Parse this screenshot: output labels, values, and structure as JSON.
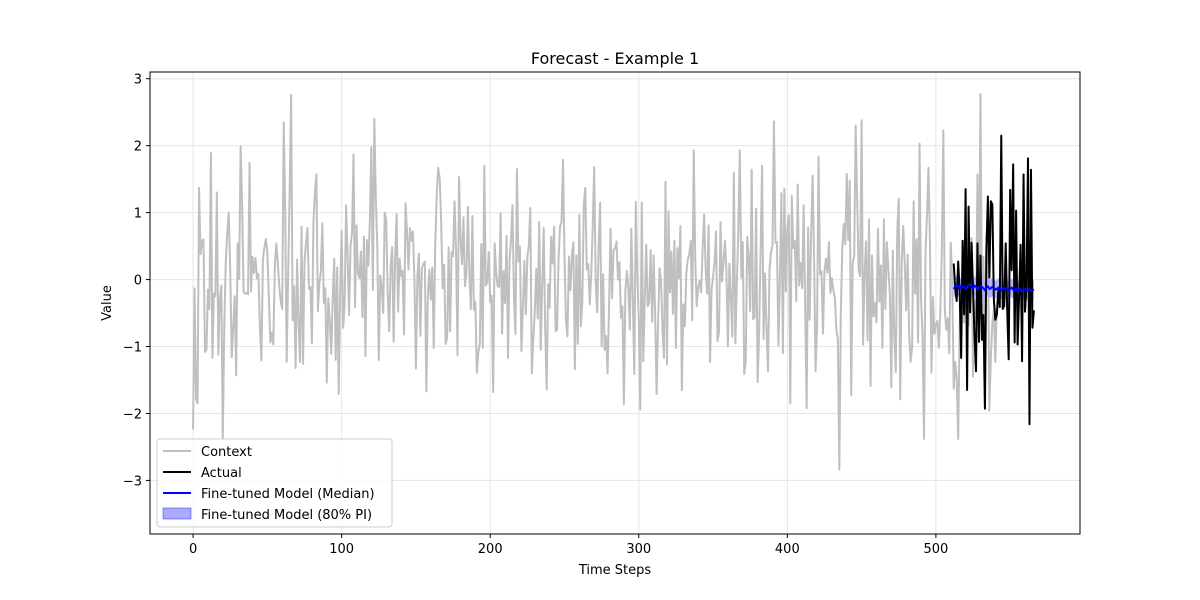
{
  "chart_data": {
    "type": "line",
    "title": "Forecast - Example 1",
    "xlabel": "Time Steps",
    "ylabel": "Value",
    "xlim": [
      -29,
      597
    ],
    "ylim": [
      -3.8,
      3.1
    ],
    "xticks": [
      0,
      100,
      200,
      300,
      400,
      500
    ],
    "yticks": [
      -3,
      -2,
      -1,
      0,
      1,
      2,
      3
    ],
    "grid": true,
    "legend_position": "lower-left",
    "colors": {
      "context": "#bfbfbf",
      "actual": "#000000",
      "median": "#0000ff",
      "interval": "#aaaaff"
    },
    "series": [
      {
        "name": "Context",
        "x_start": 0,
        "values": [
          -2.24,
          -0.13,
          -1.78,
          -1.85,
          1.37,
          0.38,
          0.58,
          0.6,
          -1.08,
          -1.05,
          -0.15,
          -0.44,
          1.89,
          -1.17,
          -0.21,
          -0.25,
          1.3,
          -1.12,
          -0.3,
          -0.09,
          -2.4,
          -0.68,
          0.27,
          0.69,
          1.0,
          0.15,
          -1.16,
          -0.73,
          -0.25,
          -1.43,
          0.54,
          0.01,
          1.99,
          1.13,
          -0.18,
          -0.21,
          -0.2,
          -0.22,
          1.74,
          -0.18,
          0.34,
          0.1,
          0.32,
          0.02,
          0.08,
          -0.72,
          -1.21,
          0.3,
          0.48,
          0.61,
          0.4,
          -0.28,
          -0.94,
          -0.79,
          -0.97,
          0.17,
          0.54,
          0.26,
          -0.1,
          -0.33,
          -0.44,
          2.35,
          1.02,
          -1.23,
          0.07,
          1.31,
          2.76,
          -0.61,
          -0.1,
          -1.32,
          0.3,
          -0.67,
          -1.23,
          0.79,
          -1.26,
          0.27,
          0.55,
          0.77,
          -0.14,
          -0.11,
          -0.95,
          0.83,
          1.29,
          1.57,
          -0.47,
          -0.06,
          0.12,
          0.84,
          -0.35,
          -0.13,
          -1.54,
          -0.28,
          -0.61,
          -1.11,
          -0.26,
          0.31,
          -1.2,
          0.18,
          -1.71,
          -0.21,
          0.73,
          -0.72,
          -0.37,
          1.11,
          0.34,
          -0.53,
          0.51,
          0.69,
          1.87,
          -0.41,
          0.81,
          0.09,
          0.02,
          0.42,
          -0.56,
          0.64,
          -1.14,
          0.59,
          0.21,
          0.89,
          1.98,
          -0.16,
          2.4,
          1.22,
          0.5,
          -1.2,
          0.06,
          -0.11,
          -0.5,
          1.0,
          0.89,
          -0.21,
          -0.77,
          0.21,
          0.48,
          -0.93,
          0.33,
          0.98,
          -0.48,
          0.31,
          0.05,
          0.13,
          -0.82,
          1.14,
          0.72,
          0.15,
          0.77,
          0.58,
          0.72,
          -0.02,
          -1.33,
          0.05,
          0.39,
          -0.84,
          0.17,
          0.23,
          0.27,
          -1.67,
          -0.27,
          0.15,
          -0.3,
          0.18,
          -1.02,
          0.52,
          1.26,
          1.67,
          1.51,
          0.85,
          -0.13,
          0.22,
          -0.96,
          -0.87,
          0.48,
          -0.77,
          0.41,
          0.35,
          1.17,
          0.42,
          -1.13,
          1.53,
          0.61,
          0.23,
          0.93,
          -0.1,
          0.09,
          1.09,
          0.05,
          -0.44,
          0.95,
          -0.45,
          -0.33,
          -1.39,
          -1.09,
          -0.96,
          0.53,
          -1.02,
          1.7,
          -0.09,
          -0.04,
          0.41,
          -0.34,
          -0.24,
          -1.68,
          0.54,
          0.11,
          -0.1,
          -0.11,
          0.99,
          -0.81,
          0.13,
          -0.35,
          0.65,
          -1.17,
          0.28,
          0.59,
          1.11,
          -0.29,
          -0.81,
          1.65,
          0.27,
          0.49,
          -1.07,
          -0.43,
          0.28,
          -0.52,
          0.34,
          0.5,
          1.07,
          -1.4,
          -0.9,
          -0.48,
          0.16,
          -0.58,
          0.86,
          -1.05,
          -0.08,
          0.77,
          -0.72,
          -1.64,
          -0.07,
          -0.42,
          0.64,
          0.24,
          0.79,
          -0.77,
          -0.75,
          0.31,
          0.79,
          0.86,
          1.79,
          0.36,
          -0.62,
          -0.85,
          0.34,
          -0.16,
          0.37,
          0.56,
          -1.34,
          0.36,
          -0.96,
          0.97,
          -0.7,
          -0.35,
          1.13,
          1.37,
          0.15,
          0.23,
          -0.37,
          0.08,
          0.8,
          1.68,
          -0.03,
          -0.49,
          0.51,
          1.15,
          -1.0,
          0.08,
          -1.05,
          -0.84,
          -1.4,
          -0.4,
          0.76,
          -0.28,
          0.45,
          0.46,
          0.57,
          0.0,
          0.26,
          -0.57,
          -0.4,
          -1.86,
          -0.17,
          0.13,
          -0.13,
          -0.75,
          0.76,
          -0.29,
          -1.41,
          1.16,
          0.09,
          -0.58,
          -1.94,
          1.15,
          -1.22,
          -0.34,
          0.52,
          -0.4,
          -0.33,
          0.44,
          -0.63,
          0.36,
          -0.49,
          -1.71,
          -0.63,
          0.17,
          -0.01,
          -0.75,
          -1.17,
          1.46,
          -1.27,
          1.02,
          -0.19,
          0.42,
          -0.51,
          0.58,
          -1.02,
          0.47,
          0.02,
          0.8,
          -1.65,
          -0.37,
          -0.7,
          0.09,
          0.3,
          0.38,
          0.58,
          -0.61,
          1.93,
          0.31,
          -0.4,
          -0.11,
          -0.02,
          -0.19,
          0.47,
          0.97,
          0.16,
          -0.21,
          0.81,
          -1.23,
          -0.14,
          0.04,
          0.26,
          0.72,
          -0.92,
          -0.78,
          0.86,
          -0.03,
          0.24,
          0.58,
          0.15,
          -1.0,
          0.24,
          -0.3,
          -0.85,
          1.6,
          -0.95,
          -0.08,
          0.74,
          1.93,
          0.03,
          0.56,
          -1.41,
          -1.21,
          0.64,
          0.35,
          -0.47,
          1.64,
          -0.59,
          -0.57,
          1.06,
          -1.53,
          -0.81,
          0.43,
          1.7,
          -0.89,
          0.09,
          -0.75,
          -1.37,
          0.15,
          0.41,
          0.51,
          2.36,
          0.55,
          0.56,
          -0.98,
          0.02,
          1.29,
          -1.1,
          1.36,
          -0.18,
          0.77,
          0.96,
          -1.85,
          1.25,
          0.47,
          0.58,
          -0.32,
          1.42,
          -0.09,
          0.25,
          -0.13,
          1.11,
          -0.42,
          -1.92,
          0.78,
          -0.6,
          0.65,
          1.55,
          0.34,
          -1.37,
          -0.73,
          1.84,
          0.08,
          0.12,
          -0.81,
          0.13,
          0.31,
          0.1,
          0.56,
          -0.2,
          0.02,
          -0.16,
          -0.27,
          -0.75,
          -0.89,
          -2.84,
          -0.51,
          0.47,
          0.83,
          0.53,
          1.58,
          0.59,
          1.48,
          -1.73,
          0.26,
          0.35,
          2.3,
          1.21,
          0.14,
          0.05,
          2.38,
          -0.97,
          0.09,
          0.57,
          -0.91,
          0.9,
          -1.59,
          0.36,
          -0.55,
          -0.35,
          -0.64,
          0.76,
          -0.33,
          0.21,
          -1.02,
          0.9,
          -0.44,
          0.56,
          0.16,
          -0.22,
          -1.61,
          0.43,
          -0.86,
          -1.38,
          0.74,
          1.21,
          -1.79,
          0.25,
          0.8,
          0.25,
          -0.46,
          0.37,
          -0.82,
          -1.23,
          -1.0,
          1.17,
          -0.21,
          0.6,
          -0.94,
          2.03,
          -0.29,
          -0.82,
          -2.38,
          0.4,
          0.97,
          1.67,
          0.55,
          -1.39,
          -0.26,
          -0.81,
          -0.67,
          -0.62,
          -1.02,
          -0.47,
          0.45,
          2.23,
          -0.44,
          -0.75,
          -0.58,
          -1.1,
          0.55,
          -0.04,
          -1.63,
          -1.23,
          -1.47,
          -2.38,
          -0.69,
          -0.24,
          0.25,
          -0.64,
          0.39,
          -0.19,
          -0.69,
          0.4,
          0.62,
          -1.45,
          -0.32,
          -0.66,
          1.57,
          -0.3,
          2.77,
          -0.59,
          0.34,
          -1.15,
          0.66,
          0.73,
          -1.96,
          -1.15,
          -0.64,
          -0.46,
          -1.23,
          -0.43
        ]
      },
      {
        "name": "Actual",
        "x_start": 512,
        "values": [
          0.24,
          -0.14,
          -0.32,
          0.27,
          -0.18,
          -1.17,
          0.58,
          -0.52,
          1.35,
          -1.65,
          1.09,
          -0.49,
          0.55,
          -0.13,
          -0.85,
          -1.37,
          0.54,
          -0.93,
          0.36,
          -0.9,
          -0.53,
          -1.93,
          0.44,
          1.24,
          0.03,
          1.17,
          1.12,
          -0.29,
          -0.6,
          -0.53,
          -0.16,
          -0.41,
          2.15,
          -0.44,
          -0.39,
          0.54,
          -0.46,
          -1.19,
          1.34,
          0.14,
          1.72,
          -0.94,
          1.03,
          -0.97,
          -0.27,
          0.52,
          -1.22,
          1.57,
          -0.48,
          -0.09,
          1.81,
          -2.16,
          1.64,
          -0.72,
          -0.46
        ]
      },
      {
        "name": "Fine-tuned Model (Median)",
        "x_start": 512,
        "values": [
          -0.14,
          -0.1,
          -0.08,
          -0.12,
          -0.09,
          -0.13,
          -0.1,
          -0.11,
          -0.14,
          -0.12,
          -0.08,
          -0.07,
          -0.1,
          -0.13,
          -0.09,
          -0.11,
          -0.15,
          -0.12,
          -0.1,
          -0.11,
          -0.13,
          -0.16,
          -0.12,
          -0.1,
          -0.14,
          -0.13,
          -0.11,
          -0.12,
          -0.15,
          -0.14,
          -0.12,
          -0.13,
          -0.16,
          -0.14,
          -0.12,
          -0.15,
          -0.13,
          -0.17,
          -0.14,
          -0.12,
          -0.15,
          -0.16,
          -0.13,
          -0.17,
          -0.14,
          -0.15,
          -0.18,
          -0.15,
          -0.14,
          -0.17,
          -0.16,
          -0.14,
          -0.17,
          -0.15,
          -0.16
        ]
      },
      {
        "name": "Fine-tuned Model (80% PI)",
        "x_start": 512,
        "lower": [
          -0.27,
          -0.24,
          -0.22,
          -0.26,
          -0.23,
          -0.26,
          -0.24,
          -0.25,
          -0.27,
          -0.26,
          -0.22,
          -0.21,
          -0.24,
          -0.26,
          -0.23,
          -0.25,
          -0.28,
          -0.26,
          -0.24,
          -0.25,
          -0.27,
          -0.29,
          -0.26,
          -0.24,
          -0.27,
          -0.27,
          -0.25,
          -0.26,
          -0.28,
          -0.28,
          -0.26,
          -0.27,
          -0.29,
          -0.28,
          -0.26,
          -0.29,
          -0.27,
          -0.3,
          -0.28,
          -0.26,
          -0.29,
          -0.3,
          -0.27,
          -0.31,
          -0.28,
          -0.29,
          -0.32,
          -0.29,
          -0.28,
          -0.31,
          -0.3,
          -0.28,
          -0.31,
          -0.29,
          -0.3
        ],
        "upper": [
          -0.01,
          0.04,
          0.06,
          0.02,
          0.05,
          0.0,
          0.04,
          0.03,
          0.0,
          0.02,
          0.06,
          0.07,
          0.04,
          0.01,
          0.05,
          0.03,
          -0.02,
          0.02,
          0.04,
          0.03,
          0.01,
          -0.03,
          0.02,
          0.04,
          0.0,
          0.01,
          0.03,
          0.02,
          -0.02,
          0.0,
          0.02,
          0.01,
          -0.03,
          0.0,
          0.02,
          -0.01,
          0.01,
          -0.04,
          0.0,
          0.02,
          -0.01,
          -0.02,
          0.01,
          -0.03,
          0.0,
          -0.01,
          -0.04,
          -0.01,
          0.0,
          -0.03,
          -0.02,
          0.0,
          -0.03,
          -0.01,
          -0.02
        ]
      }
    ]
  }
}
